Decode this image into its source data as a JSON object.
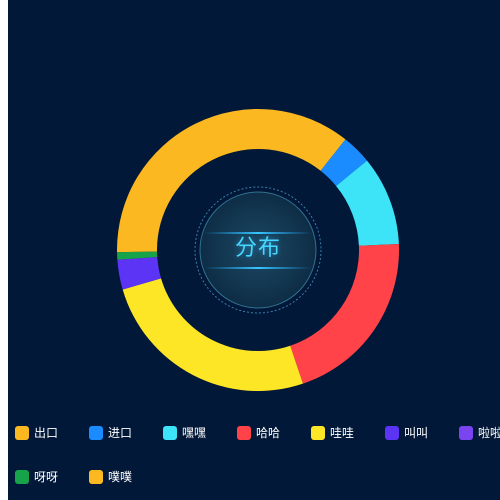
{
  "chart_data": {
    "type": "pie",
    "variant": "donut",
    "center_label": "分布",
    "legend_position": "bottom",
    "series": [
      {
        "name": "出口",
        "value": 42,
        "color": "#fcb820"
      },
      {
        "name": "进口",
        "value": 4,
        "color": "#1a8cff"
      },
      {
        "name": "嘿嘿",
        "value": 12,
        "color": "#3de4f8"
      },
      {
        "name": "哈哈",
        "value": 24,
        "color": "#ff4349"
      },
      {
        "name": "哇哇",
        "value": 30,
        "color": "#fde626"
      },
      {
        "name": "叫叫",
        "value": 4,
        "color": "#5b34f5"
      },
      {
        "name": "啦啦",
        "value": 0,
        "color": "#7a44f0"
      },
      {
        "name": "呀呀",
        "value": 1,
        "color": "#16a34a"
      },
      {
        "name": "噗噗",
        "value": 0,
        "color": "#fcb820"
      }
    ]
  },
  "colors": {
    "background": "#011838",
    "center_text": "#47d6ff"
  }
}
